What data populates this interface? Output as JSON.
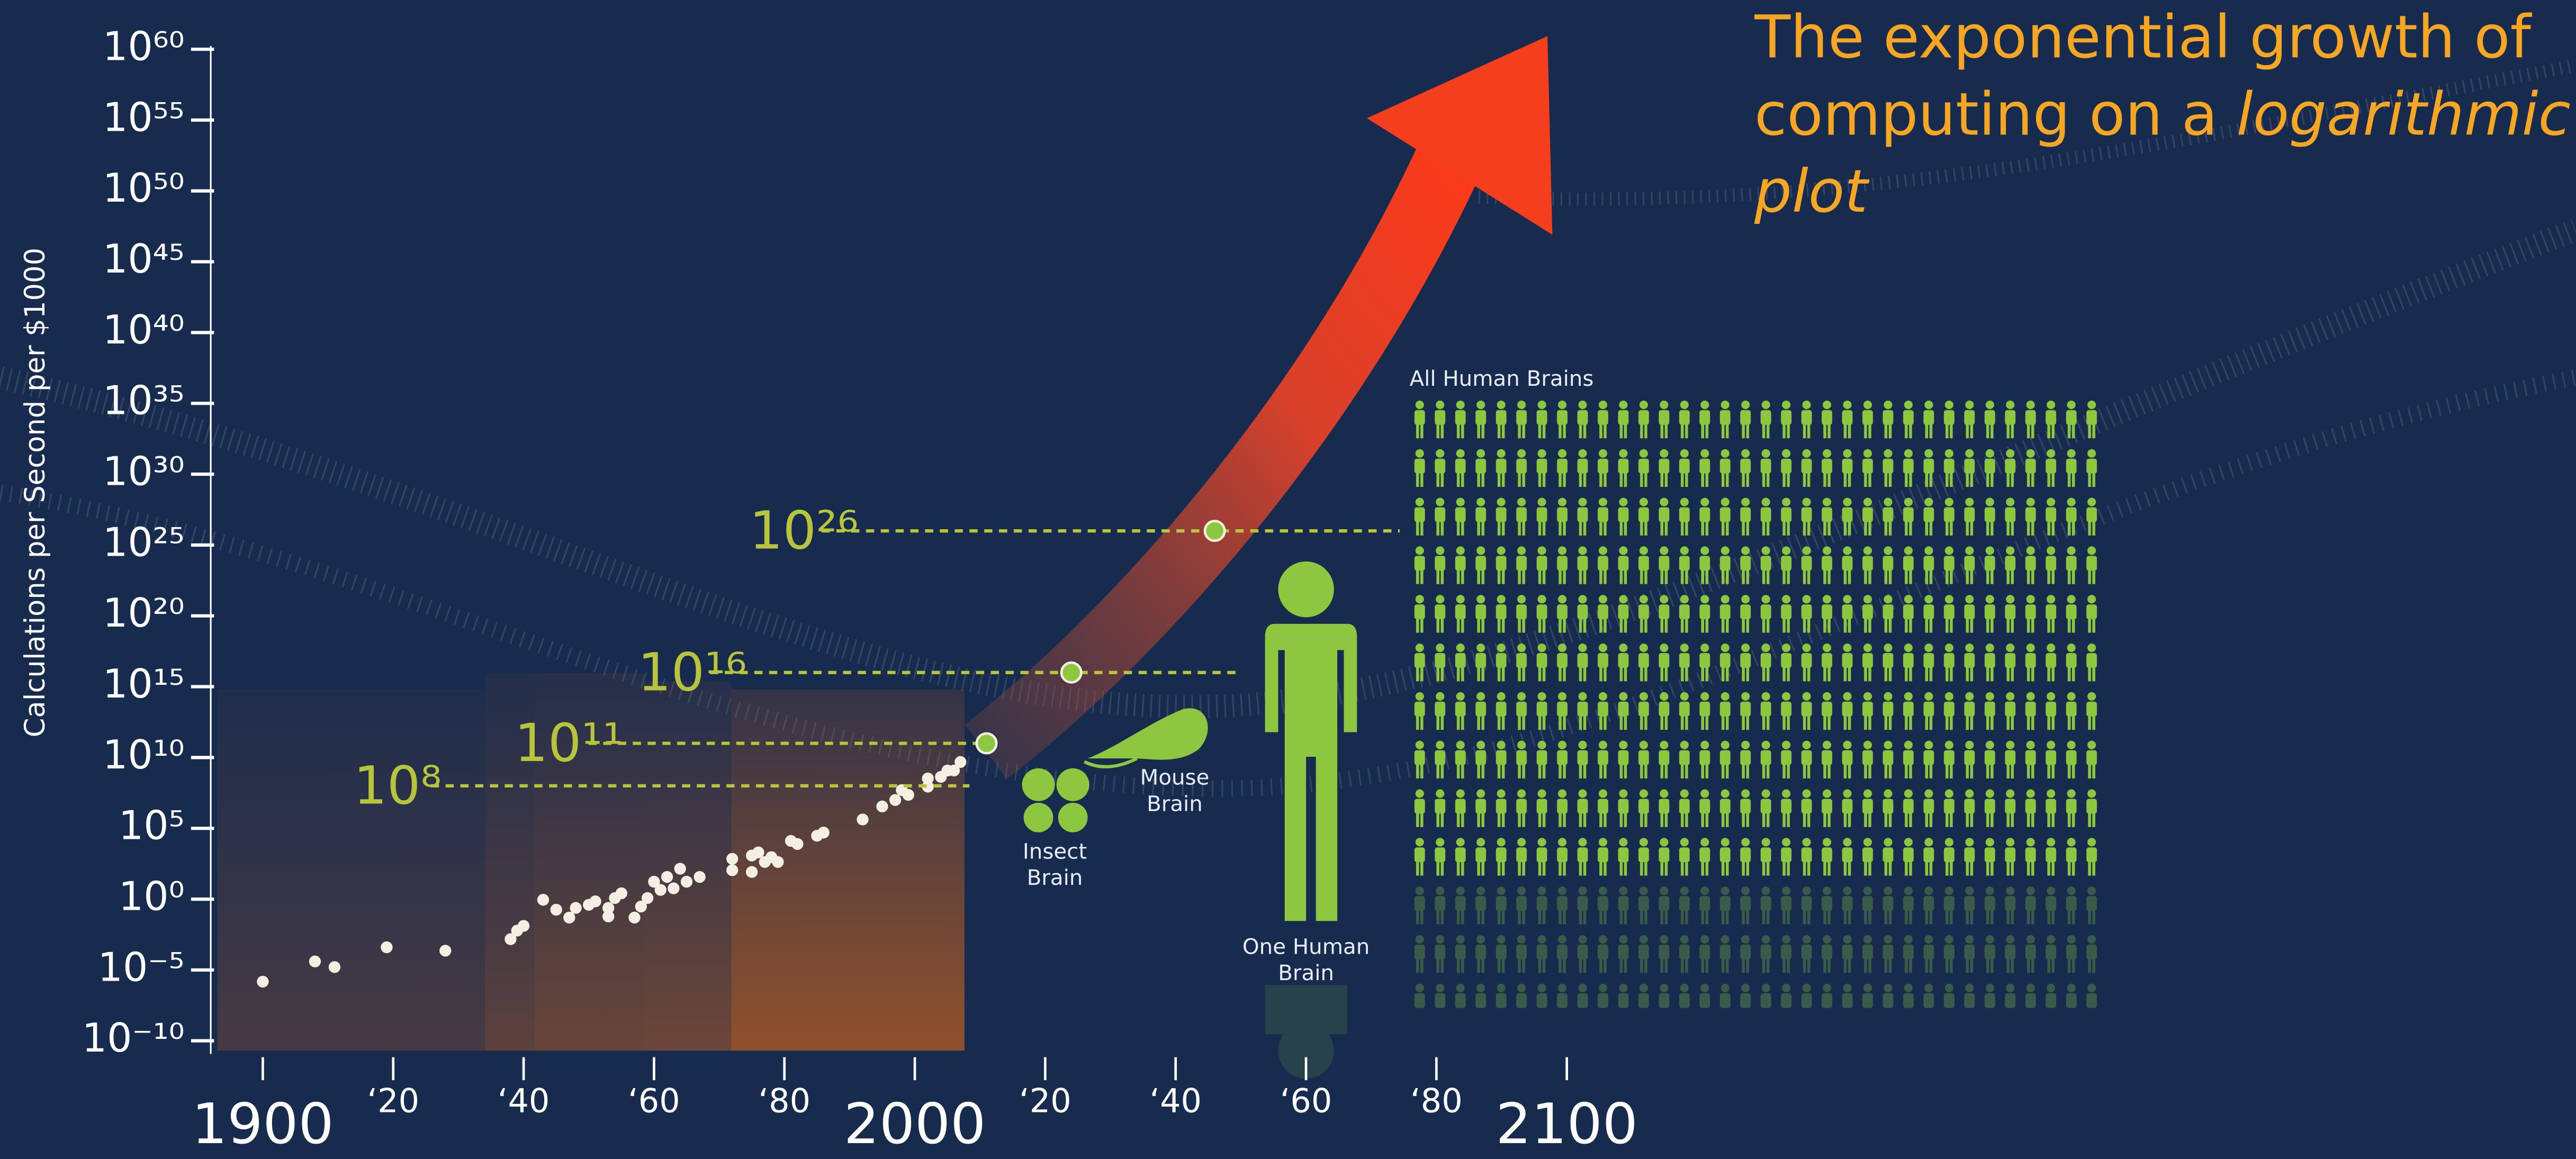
{
  "chart_data": {
    "type": "scatter",
    "title": "The exponential growth of computing on a",
    "title_emphasis": "logarithmic plot",
    "y_label": "Calculations per Second per $1000",
    "log_y": true,
    "xlim": [
      1890,
      2245
    ],
    "ylim": [
      1e-10,
      1e+60
    ],
    "xticks": [
      1900,
      {
        "value": 1920,
        "label": "‘20"
      },
      {
        "value": 1940,
        "label": "‘40"
      },
      {
        "value": 1960,
        "label": "‘60"
      },
      {
        "value": 1980,
        "label": "‘80"
      },
      2000,
      {
        "value": 2020,
        "label": "‘20"
      },
      {
        "value": 2040,
        "label": "‘40"
      },
      {
        "value": 2060,
        "label": "‘60"
      },
      {
        "value": 2080,
        "label": "‘80"
      },
      2100
    ],
    "yticks": [
      {
        "value": 1e-10,
        "label": "10⁻¹⁰"
      },
      {
        "value": 1e-05,
        "label": "10⁻⁵"
      },
      {
        "value": 1,
        "label": "10⁰"
      },
      {
        "value": 100000.0,
        "label": "10⁵"
      },
      {
        "value": 10000000000.0,
        "label": "10¹⁰"
      },
      {
        "value": 1000000000000000.0,
        "label": "10¹⁵"
      },
      {
        "value": 1e+20,
        "label": "10²⁰"
      },
      {
        "value": 1e+25,
        "label": "10²⁵"
      },
      {
        "value": 1e+30,
        "label": "10³⁰"
      },
      {
        "value": 1e+35,
        "label": "10³⁵"
      },
      {
        "value": 1e+40,
        "label": "10⁴⁰"
      },
      {
        "value": 1e+45,
        "label": "10⁴⁵"
      },
      {
        "value": 1e+50,
        "label": "10⁵⁰"
      },
      {
        "value": 1e+55,
        "label": "10⁵⁵"
      },
      {
        "value": 1e+60,
        "label": "10⁶⁰"
      }
    ],
    "color": "#f4efe2",
    "x": [
      1900,
      1908,
      1911,
      1919,
      1928,
      1938,
      1939,
      1940,
      1943,
      1945,
      1947,
      1948,
      1950,
      1951,
      1953,
      1953,
      1954,
      1955,
      1957,
      1958,
      1959,
      1960,
      1961,
      1962,
      1963,
      1964,
      1965,
      1967,
      1972,
      1972,
      1975,
      1975,
      1976,
      1977,
      1978,
      1979,
      1981,
      1982,
      1985,
      1986,
      1992,
      1995,
      1997,
      1998,
      1999,
      2002,
      2002,
      2004,
      2005,
      2006,
      2007
    ],
    "values": [
      1.5e-06,
      4e-05,
      1.6e-05,
      0.0004,
      0.00023,
      0.0015,
      0.006,
      0.013,
      0.9,
      0.18,
      0.05,
      0.24,
      0.4,
      0.7,
      0.24,
      0.06,
      1.2,
      2.6,
      0.05,
      0.3,
      1.2,
      17,
      4.5,
      37,
      5.8,
      140,
      17,
      37,
      110,
      700,
      83,
      1200,
      2000,
      420,
      920,
      420,
      13000,
      7800,
      30000,
      50000,
      420000,
      3500000.0,
      10000000.0,
      50000000.0,
      23000000.0,
      87000000.0,
      330000000.0,
      430000000.0,
      1200000000.0,
      1200000000.0,
      4800000000.0
    ],
    "annotations": [
      {
        "text": "Insect Brain",
        "value": 100000000.0,
        "value_label": "10⁸",
        "x": null
      },
      {
        "text": "Mouse Brain",
        "value": 100000000000.0,
        "value_label": "10¹¹",
        "x": 2011
      },
      {
        "text": "One Human Brain",
        "value": 1e+16,
        "value_label": "10¹⁶",
        "x": 2024
      },
      {
        "text": "All Human Brains",
        "value": 1e+26,
        "value_label": "10²⁶",
        "x": 2046
      }
    ],
    "annotation_color": "#b8c53c",
    "point_color": "#8dc63f"
  }
}
